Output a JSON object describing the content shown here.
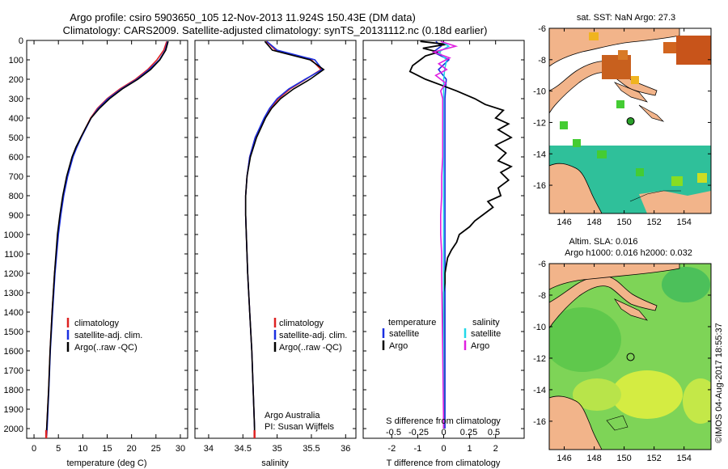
{
  "figure": {
    "title_line1": "Argo profile: csiro 5903650_105 12-Nov-2013 11.924S 150.43E (DM data)",
    "title_line2": "Climatology: CARS2009. Satellite-adjusted climatology: synTS_20131112.nc (0.18d earlier)",
    "credit": "Argo Australia",
    "pi": "PI: Susan Wijffels",
    "stamp": "©IMOS 04-Aug-2017 18:55:37"
  },
  "colors": {
    "climatology": "#dd2222",
    "satellite": "#1a2fe0",
    "argo": "#000000",
    "sat_s": "#22d8e8",
    "argo_s": "#e020e0",
    "land": "#f2b48a",
    "ocean": "#2fc09a",
    "sla_field": "#8fe060",
    "sla_high": "#e8f040"
  },
  "chart_data": [
    {
      "id": "temperature",
      "type": "line",
      "xlabel": "temperature (deg C)",
      "ylabel": "",
      "xlim": [
        -1.5,
        31.5
      ],
      "ylim": [
        2050,
        0
      ],
      "xticks": [
        "0",
        "5",
        "10",
        "15",
        "20",
        "25",
        "30"
      ],
      "yticks": [
        "0",
        "100",
        "200",
        "300",
        "400",
        "500",
        "600",
        "700",
        "800",
        "900",
        "1000",
        "1100",
        "1200",
        "1300",
        "1400",
        "1500",
        "1600",
        "1700",
        "1800",
        "1900",
        "2000"
      ],
      "legend": [
        "climatology",
        "satellite-adj. clim.",
        "Argo(..raw -QC)"
      ],
      "series": [
        {
          "name": "climatology",
          "depth": [
            5,
            50,
            100,
            150,
            200,
            250,
            300,
            350,
            400,
            450,
            500,
            550,
            600,
            700,
            800,
            900,
            1000,
            1200,
            1400,
            1600,
            1800,
            2000,
            2040
          ],
          "values": [
            27.2,
            26.6,
            25.2,
            23.3,
            20.8,
            17.6,
            15.0,
            13.0,
            11.6,
            10.6,
            9.6,
            8.7,
            7.9,
            6.8,
            6.0,
            5.4,
            4.9,
            4.2,
            3.7,
            3.3,
            3.0,
            2.6,
            2.5
          ]
        },
        {
          "name": "satellite-adj. clim.",
          "depth": [
            5,
            50,
            100,
            150,
            200,
            250,
            300,
            350,
            400,
            450,
            500,
            550,
            600,
            700,
            800,
            900,
            1000,
            1200,
            1400,
            1600,
            1800,
            2000,
            2040
          ],
          "values": [
            27.4,
            26.9,
            25.7,
            23.6,
            21.1,
            17.9,
            15.2,
            13.2,
            11.7,
            10.7,
            9.7,
            8.8,
            8.0,
            6.9,
            6.1,
            5.5,
            5.0,
            4.3,
            3.8,
            3.35,
            3.05,
            2.7,
            2.6
          ]
        },
        {
          "name": "Argo(..raw -QC)",
          "depth": [
            5,
            50,
            100,
            150,
            200,
            250,
            300,
            350,
            400,
            450,
            500,
            550,
            600,
            700,
            800,
            900,
            1000,
            1200,
            1400,
            1600,
            1800,
            2000,
            2040
          ],
          "values": [
            27.5,
            27.0,
            25.8,
            23.9,
            21.3,
            18.1,
            15.5,
            13.4,
            11.7,
            10.6,
            9.6,
            8.6,
            7.8,
            6.7,
            5.9,
            5.3,
            4.8,
            4.2,
            3.7,
            3.3,
            3.0,
            2.6,
            2.5
          ]
        }
      ]
    },
    {
      "id": "salinity",
      "type": "line",
      "xlabel": "salinity",
      "ylabel": "",
      "xlim": [
        33.8,
        36.15
      ],
      "ylim": [
        2050,
        0
      ],
      "xticks": [
        "34",
        "34.5",
        "35",
        "35.5",
        "36"
      ],
      "legend": [
        "climatology",
        "satellite-adj. clim.",
        "Argo(..raw -QC)"
      ],
      "series": [
        {
          "name": "climatology",
          "depth": [
            5,
            50,
            100,
            150,
            200,
            250,
            300,
            350,
            400,
            500,
            600,
            700,
            800,
            900,
            1000,
            1200,
            1400,
            1600,
            1800,
            2000,
            2040
          ],
          "values": [
            34.84,
            34.98,
            35.5,
            35.64,
            35.42,
            35.19,
            35.02,
            34.9,
            34.82,
            34.68,
            34.6,
            34.56,
            34.54,
            34.54,
            34.55,
            34.57,
            34.6,
            34.63,
            34.65,
            34.67,
            34.67
          ]
        },
        {
          "name": "satellite-adj. clim.",
          "depth": [
            5,
            50,
            100,
            150,
            200,
            250,
            300,
            350,
            400,
            500,
            600,
            700,
            800,
            900,
            1000,
            1200,
            1400,
            1600,
            1800,
            2000,
            2040
          ],
          "values": [
            34.85,
            35.0,
            35.55,
            35.66,
            35.41,
            35.17,
            35.0,
            34.89,
            34.81,
            34.68,
            34.6,
            34.56,
            34.54,
            34.54,
            34.55,
            34.57,
            34.6,
            34.63,
            34.65,
            34.67,
            34.67
          ]
        },
        {
          "name": "Argo(..raw -QC)",
          "depth": [
            5,
            50,
            100,
            150,
            200,
            250,
            300,
            350,
            400,
            500,
            600,
            700,
            800,
            900,
            1000,
            1200,
            1400,
            1600,
            1800,
            2000,
            2040
          ],
          "values": [
            34.82,
            34.93,
            35.48,
            35.68,
            35.48,
            35.24,
            35.05,
            34.92,
            34.83,
            34.7,
            34.61,
            34.56,
            34.54,
            34.54,
            34.55,
            34.57,
            34.6,
            34.63,
            34.65,
            34.67,
            34.67
          ]
        }
      ]
    },
    {
      "id": "differences",
      "type": "line",
      "xlabel": "T difference from climatology",
      "x2label": "S difference from climatology",
      "xlim": [
        -3.1,
        3.1
      ],
      "ylim": [
        2050,
        0
      ],
      "xticks": [
        "-2",
        "-1",
        "0",
        "1",
        "2"
      ],
      "x2ticks": [
        "-0.5",
        "-0.25",
        "0",
        "0.25",
        "0.5"
      ],
      "legend_headers": [
        "temperature",
        "salinity"
      ],
      "legend": [
        "satellite",
        "Argo",
        "satellite",
        "Argo"
      ],
      "series": [
        {
          "name": "T satellite",
          "depth": [
            5,
            30,
            60,
            100,
            150,
            200,
            300,
            400,
            600,
            800,
            1000,
            1500,
            2000
          ],
          "values": [
            -0.3,
            -0.1,
            -0.4,
            0.2,
            -0.2,
            0.1,
            0.05,
            0.05,
            0.05,
            0.05,
            0.05,
            0.05,
            0.05
          ]
        },
        {
          "name": "T Argo",
          "depth": [
            5,
            20,
            40,
            60,
            80,
            100,
            130,
            160,
            200,
            230,
            260,
            300,
            330,
            360,
            400,
            430,
            460,
            500,
            540,
            580,
            620,
            650,
            680,
            720,
            760,
            800,
            830,
            860,
            900,
            930,
            960,
            1000,
            1040,
            1080,
            1120,
            1160,
            1200,
            1250,
            1300,
            1400,
            1500,
            1600,
            1800,
            2000
          ],
          "values": [
            -0.9,
            0.1,
            -0.8,
            -0.2,
            -0.7,
            -0.9,
            -1.2,
            -1.3,
            -0.7,
            -0.1,
            0.5,
            1.2,
            1.6,
            2.3,
            2.0,
            2.5,
            2.1,
            2.6,
            2.0,
            2.4,
            2.1,
            2.6,
            2.2,
            2.5,
            2.1,
            2.2,
            1.7,
            1.9,
            1.5,
            1.2,
            1.0,
            0.6,
            0.5,
            0.3,
            0.15,
            0.1,
            0.05,
            0.05,
            0.0,
            0.0,
            0.0,
            0.0,
            0.0,
            0.0
          ]
        },
        {
          "name": "S satellite",
          "depth": [
            5,
            30,
            60,
            100,
            150,
            200,
            300,
            400,
            600,
            800,
            1000,
            1500,
            2000
          ],
          "values": [
            -0.02,
            0.05,
            -0.05,
            0.03,
            0.01,
            0.0,
            0.0,
            0.0,
            0.0,
            0.0,
            0.0,
            0.0,
            0.0
          ]
        },
        {
          "name": "S Argo",
          "depth": [
            5,
            30,
            60,
            90,
            120,
            150,
            180,
            220,
            260,
            300,
            400,
            500,
            600,
            700,
            800,
            900,
            1000,
            1100,
            1200,
            1600,
            2000
          ],
          "values": [
            -0.03,
            0.12,
            -0.1,
            0.06,
            -0.05,
            0.03,
            -0.08,
            0.02,
            -0.03,
            -0.01,
            -0.01,
            -0.01,
            -0.01,
            -0.02,
            -0.02,
            -0.03,
            -0.03,
            -0.02,
            -0.02,
            -0.01,
            0.0
          ]
        }
      ]
    },
    {
      "id": "map_sst",
      "type": "heatmap",
      "title": "sat. SST: NaN Argo: 27.3",
      "xticks": [
        "146",
        "148",
        "150",
        "152",
        "154"
      ],
      "yticks": [
        "-6",
        "-8",
        "-10",
        "-12",
        "-14",
        "-16"
      ],
      "xlim": [
        145.0,
        155.8
      ],
      "ylim": [
        -17.8,
        -6.0
      ],
      "float_lon": 150.43,
      "float_lat": -11.924
    },
    {
      "id": "map_sla",
      "type": "heatmap",
      "title_line1": "Altim. SLA: 0.016",
      "title_line2": "Argo h1000: 0.016 h2000: 0.032",
      "xticks": [
        "146",
        "148",
        "150",
        "152",
        "154"
      ],
      "yticks": [
        "-6",
        "-8",
        "-10",
        "-12",
        "-14",
        "-16"
      ],
      "xlim": [
        145.0,
        155.8
      ],
      "ylim": [
        -17.8,
        -6.0
      ],
      "float_lon": 150.43,
      "float_lat": -11.924
    }
  ]
}
